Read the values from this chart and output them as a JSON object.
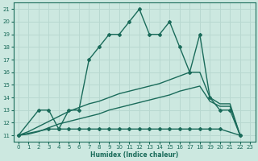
{
  "xlabel": "Humidex (Indice chaleur)",
  "xlim": [
    -0.5,
    23.5
  ],
  "ylim": [
    10.5,
    21.5
  ],
  "xticks": [
    0,
    1,
    2,
    3,
    4,
    5,
    6,
    7,
    8,
    9,
    10,
    11,
    12,
    13,
    14,
    15,
    16,
    17,
    18,
    19,
    20,
    21,
    22,
    23
  ],
  "yticks": [
    11,
    12,
    13,
    14,
    15,
    16,
    17,
    18,
    19,
    20,
    21
  ],
  "bg_color": "#cce8e0",
  "line_color": "#1a6b5a",
  "grid_color": "#b8d8d0",
  "lines": [
    {
      "x": [
        0,
        2,
        3,
        4,
        5,
        6,
        7,
        8,
        9,
        10,
        11,
        12,
        13,
        14,
        15,
        16,
        17,
        18,
        19,
        20,
        21,
        22
      ],
      "y": [
        11,
        13,
        13,
        11.5,
        13,
        13,
        17,
        18,
        19,
        19,
        20,
        21,
        19,
        19,
        20,
        18,
        16,
        19,
        14,
        13,
        13,
        11
      ],
      "marker": "D",
      "markersize": 2.0,
      "linewidth": 1.0
    },
    {
      "x": [
        0,
        3,
        4,
        5,
        6,
        7,
        8,
        9,
        10,
        11,
        12,
        13,
        14,
        15,
        16,
        17,
        18,
        19,
        20,
        22
      ],
      "y": [
        11,
        11.5,
        11.5,
        11.5,
        11.5,
        11.5,
        11.5,
        11.5,
        11.5,
        11.5,
        11.5,
        11.5,
        11.5,
        11.5,
        11.5,
        11.5,
        11.5,
        11.5,
        11.5,
        11
      ],
      "marker": "D",
      "markersize": 2.0,
      "linewidth": 1.0
    },
    {
      "x": [
        0,
        1,
        2,
        3,
        4,
        5,
        6,
        7,
        8,
        9,
        10,
        11,
        12,
        13,
        14,
        15,
        16,
        17,
        18,
        19,
        20,
        21,
        22
      ],
      "y": [
        11,
        11.3,
        11.7,
        12.1,
        12.5,
        12.9,
        13.2,
        13.5,
        13.7,
        14.0,
        14.3,
        14.5,
        14.7,
        14.9,
        15.1,
        15.4,
        15.7,
        16.0,
        16.0,
        14.0,
        13.5,
        13.5,
        11
      ],
      "marker": null,
      "markersize": 0,
      "linewidth": 1.0
    },
    {
      "x": [
        0,
        1,
        2,
        3,
        4,
        5,
        6,
        7,
        8,
        9,
        10,
        11,
        12,
        13,
        14,
        15,
        16,
        17,
        18,
        19,
        20,
        21,
        22
      ],
      "y": [
        11,
        11.1,
        11.3,
        11.6,
        11.9,
        12.1,
        12.3,
        12.5,
        12.7,
        13.0,
        13.2,
        13.4,
        13.6,
        13.8,
        14.0,
        14.2,
        14.5,
        14.7,
        14.9,
        13.7,
        13.3,
        13.3,
        11
      ],
      "marker": null,
      "markersize": 0,
      "linewidth": 1.0
    }
  ]
}
